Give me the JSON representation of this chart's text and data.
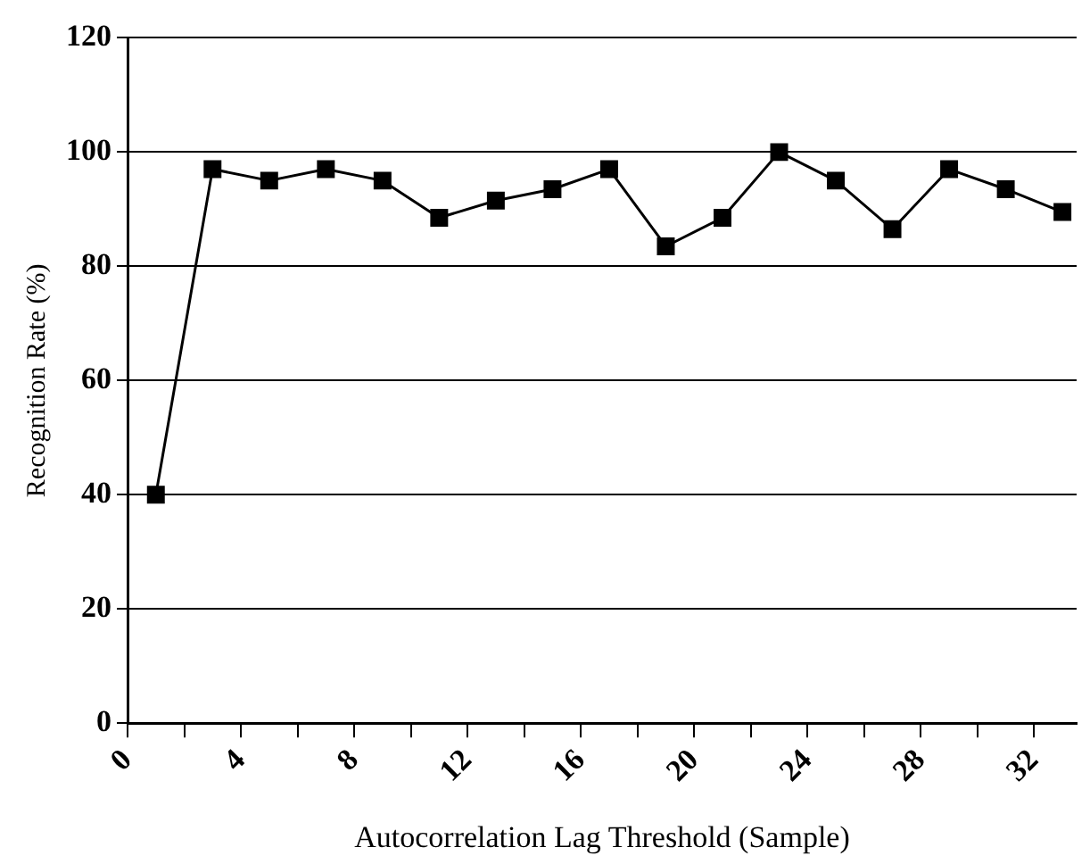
{
  "chart_data": {
    "type": "line",
    "xlabel": "Autocorrelation Lag Threshold (Sample)",
    "ylabel": "Recognition Rate (%)",
    "x": [
      1,
      3,
      5,
      7,
      9,
      11,
      13,
      15,
      17,
      19,
      21,
      23,
      25,
      27,
      29,
      31,
      33
    ],
    "series": [
      {
        "color": "#000000",
        "values": [
          40,
          97,
          95,
          97,
          95,
          88.5,
          91.5,
          93.5,
          97,
          83.5,
          88.5,
          100,
          95,
          86.5,
          97,
          93.5,
          89.5
        ]
      }
    ],
    "xlim": [
      0,
      33.5
    ],
    "xticks": [
      0,
      {
        "value": 2,
        "label": null
      },
      4,
      {
        "value": 6,
        "label": null
      },
      8,
      {
        "value": 10,
        "label": null
      },
      12,
      {
        "value": 14,
        "label": null
      },
      16,
      {
        "value": 18,
        "label": null
      },
      20,
      {
        "value": 22,
        "label": null
      },
      24,
      {
        "value": 26,
        "label": null
      },
      28,
      {
        "value": 30,
        "label": null
      },
      32
    ],
    "ylim": [
      0,
      120
    ],
    "yticks": [
      0,
      20,
      40,
      60,
      80,
      100,
      120
    ],
    "grid": "y",
    "legend": false,
    "marker": "square",
    "line_style": "solid"
  }
}
